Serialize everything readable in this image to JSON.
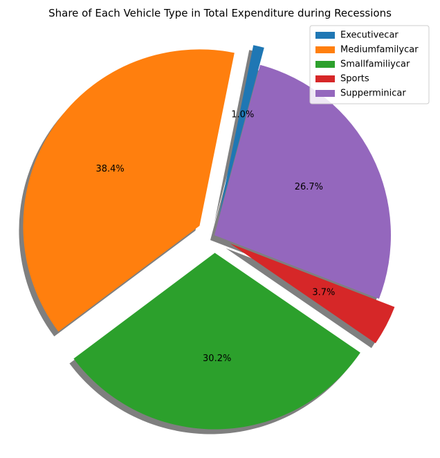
{
  "chart_data": {
    "type": "pie",
    "title": "Share of Each Vehicle Type in Total Expenditure during Recessions",
    "categories": [
      "Executivecar",
      "Mediumfamilycar",
      "Smallfamiliycar",
      "Sports",
      "Supperminicar"
    ],
    "values": [
      1.0,
      38.4,
      30.2,
      3.7,
      26.7
    ],
    "value_labels": [
      "1.0%",
      "38.4%",
      "30.2%",
      "3.7%",
      "26.7%"
    ],
    "colors": [
      "#1f77b4",
      "#ff7f0e",
      "#2ca02c",
      "#d62728",
      "#9467bd"
    ],
    "exploded": [
      0.1,
      0.1,
      0.1,
      0.1,
      0.0
    ],
    "start_angle_deg": 75,
    "direction": "counterclockwise",
    "shadow": true,
    "legend_position": "top-right"
  }
}
